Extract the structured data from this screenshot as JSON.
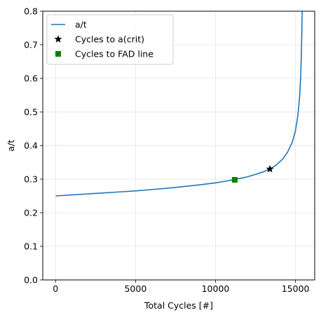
{
  "chart_data": {
    "type": "line",
    "xlabel": "Total Cycles [#]",
    "ylabel": "a/t",
    "xlim": [
      -800,
      16200
    ],
    "ylim": [
      0.0,
      0.8
    ],
    "xticks": [
      0,
      5000,
      10000,
      15000
    ],
    "yticks": [
      0.0,
      0.1,
      0.2,
      0.3,
      0.4,
      0.5,
      0.6,
      0.7,
      0.8
    ],
    "xtick_labels": [
      "0",
      "5000",
      "10000",
      "15000"
    ],
    "ytick_labels": [
      "0.0",
      "0.1",
      "0.2",
      "0.3",
      "0.4",
      "0.5",
      "0.6",
      "0.7",
      "0.8"
    ],
    "grid": true,
    "legend_position": "upper-left",
    "series": [
      {
        "name": "a/t",
        "kind": "line",
        "color": "#1f77b4",
        "x": [
          0,
          1000,
          2000,
          3000,
          4000,
          5000,
          6000,
          7000,
          8000,
          9000,
          10000,
          10500,
          11000,
          11500,
          12000,
          12500,
          13000,
          13400,
          13800,
          14200,
          14500,
          14800,
          15000,
          15150,
          15250,
          15320,
          15360,
          15390,
          15410,
          15420
        ],
        "y": [
          0.25,
          0.253,
          0.256,
          0.259,
          0.262,
          0.265,
          0.269,
          0.273,
          0.278,
          0.283,
          0.289,
          0.293,
          0.297,
          0.302,
          0.307,
          0.314,
          0.322,
          0.33,
          0.342,
          0.36,
          0.38,
          0.41,
          0.445,
          0.49,
          0.54,
          0.6,
          0.66,
          0.72,
          0.78,
          0.8
        ]
      },
      {
        "name": "Cycles to a(crit)",
        "kind": "marker",
        "marker": "star",
        "color": "#000000",
        "x": [
          13400
        ],
        "y": [
          0.33
        ]
      },
      {
        "name": "Cycles to FAD line",
        "kind": "marker",
        "marker": "square",
        "color": "#008000",
        "x": [
          11200
        ],
        "y": [
          0.298
        ]
      }
    ]
  }
}
